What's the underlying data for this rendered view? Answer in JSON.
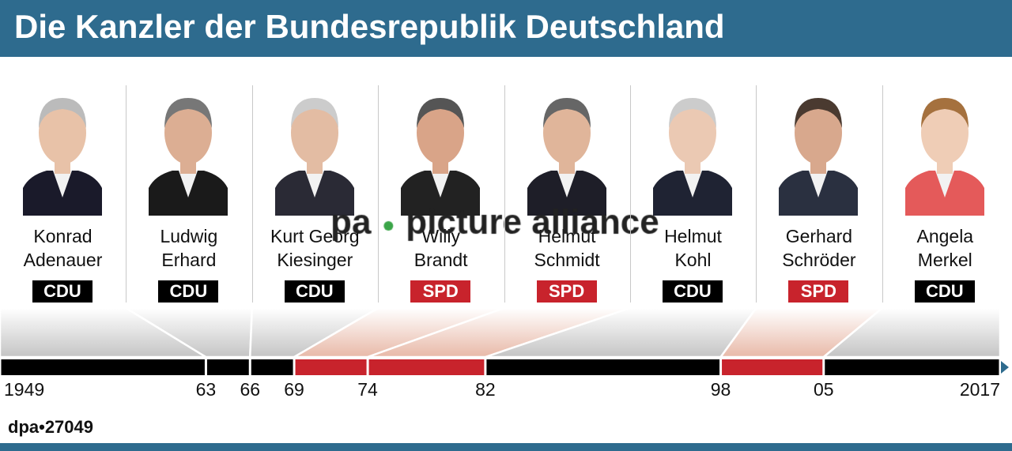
{
  "title": "Die Kanzler der Bundesrepublik Deutschland",
  "party_colors": {
    "CDU": "#000000",
    "SPD": "#c8232c"
  },
  "accent_color": "#2e6b8e",
  "chancellors": [
    {
      "first": "Konrad",
      "last": "Adenauer",
      "party": "CDU",
      "start": 1949,
      "end": 1963
    },
    {
      "first": "Ludwig",
      "last": "Erhard",
      "party": "CDU",
      "start": 1963,
      "end": 1966
    },
    {
      "first": "Kurt Georg",
      "last": "Kiesinger",
      "party": "CDU",
      "start": 1966,
      "end": 1969
    },
    {
      "first": "Willy",
      "last": "Brandt",
      "party": "SPD",
      "start": 1969,
      "end": 1974
    },
    {
      "first": "Helmut",
      "last": "Schmidt",
      "party": "SPD",
      "start": 1974,
      "end": 1982
    },
    {
      "first": "Helmut",
      "last": "Kohl",
      "party": "CDU",
      "start": 1982,
      "end": 1998
    },
    {
      "first": "Gerhard",
      "last": "Schröder",
      "party": "SPD",
      "start": 1998,
      "end": 2005
    },
    {
      "first": "Angela",
      "last": "Merkel",
      "party": "CDU",
      "start": 2005,
      "end": 2017
    }
  ],
  "timeline": {
    "range": [
      1949,
      2017
    ],
    "tick_labels": [
      {
        "year": 1949,
        "label": "1949"
      },
      {
        "year": 1963,
        "label": "63"
      },
      {
        "year": 1966,
        "label": "66"
      },
      {
        "year": 1969,
        "label": "69"
      },
      {
        "year": 1974,
        "label": "74"
      },
      {
        "year": 1982,
        "label": "82"
      },
      {
        "year": 1998,
        "label": "98"
      },
      {
        "year": 2005,
        "label": "05"
      },
      {
        "year": 2017,
        "label": "2017"
      }
    ]
  },
  "watermark": {
    "left": "pa",
    "right": "picture alliance"
  },
  "credit": "dpa•27049"
}
